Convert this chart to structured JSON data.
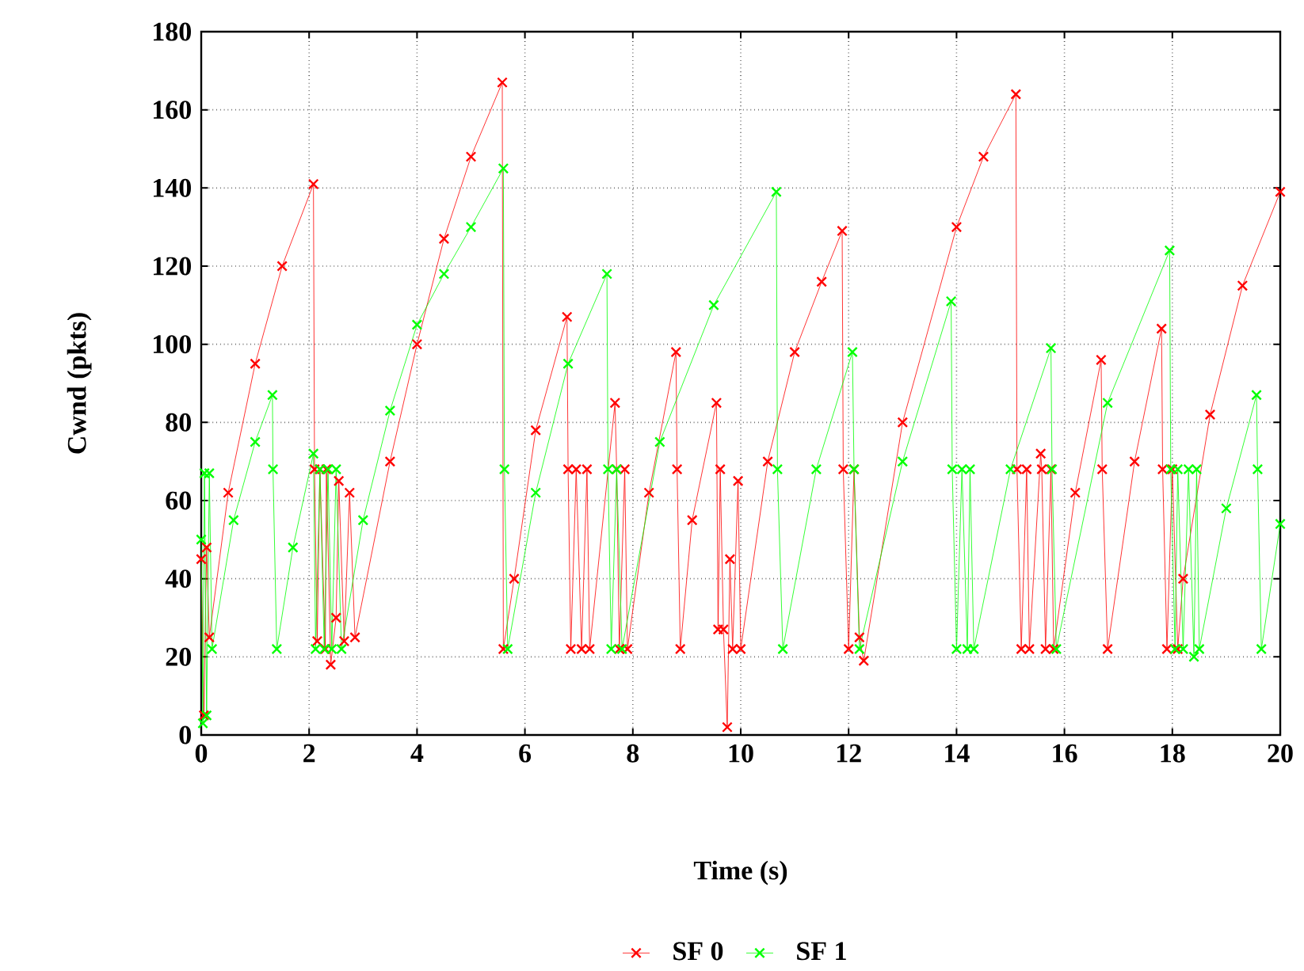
{
  "chart_data": {
    "type": "line",
    "xlabel": "Time (s)",
    "ylabel": "Cwnd (pkts)",
    "xlim": [
      0,
      20
    ],
    "xticks": [
      0,
      2,
      4,
      6,
      8,
      10,
      12,
      14,
      16,
      18,
      20
    ],
    "ylim": [
      0,
      180
    ],
    "yticks": [
      0,
      20,
      40,
      60,
      80,
      100,
      120,
      140,
      160,
      180
    ],
    "grid": true,
    "legend": "bottom",
    "marker": "cross",
    "series": [
      {
        "name": "SF 0",
        "color": "#ff0000",
        "x": [
          0,
          0.05,
          0.1,
          0.15,
          0.5,
          1.0,
          1.5,
          2.08,
          2.1,
          2.15,
          2.2,
          2.3,
          2.32,
          2.4,
          2.5,
          2.55,
          2.65,
          2.75,
          2.85,
          3.5,
          4.0,
          4.5,
          5.0,
          5.58,
          5.6,
          5.8,
          6.2,
          6.78,
          6.8,
          6.85,
          6.95,
          7.05,
          7.15,
          7.2,
          7.67,
          7.7,
          7.75,
          7.85,
          7.9,
          8.3,
          8.8,
          8.82,
          8.88,
          9.1,
          9.55,
          9.58,
          9.62,
          9.68,
          9.75,
          9.8,
          9.85,
          9.95,
          10.0,
          10.5,
          11.0,
          11.5,
          11.88,
          11.9,
          12.0,
          12.1,
          12.2,
          12.28,
          13.0,
          14.0,
          14.5,
          15.1,
          15.12,
          15.2,
          15.3,
          15.35,
          15.56,
          15.58,
          15.65,
          15.75,
          15.8,
          16.2,
          16.68,
          16.7,
          16.8,
          17.3,
          17.8,
          17.82,
          17.9,
          18.0,
          18.1,
          18.2,
          18.7,
          19.3,
          20.0
        ],
        "values": [
          45,
          5,
          48,
          25,
          62,
          95,
          120,
          141,
          68,
          24,
          68,
          22,
          68,
          18,
          30,
          65,
          24,
          62,
          25,
          70,
          100,
          127,
          148,
          167,
          22,
          40,
          78,
          107,
          68,
          22,
          68,
          22,
          68,
          22,
          85,
          68,
          22,
          68,
          22,
          62,
          98,
          68,
          22,
          55,
          85,
          27,
          68,
          27,
          2,
          45,
          22,
          65,
          22,
          70,
          98,
          116,
          129,
          68,
          22,
          68,
          25,
          19,
          80,
          130,
          148,
          164,
          68,
          22,
          68,
          22,
          72,
          68,
          22,
          68,
          22,
          62,
          96,
          68,
          22,
          70,
          104,
          68,
          22,
          68,
          22,
          40,
          82,
          115,
          139
        ]
      },
      {
        "name": "SF 1",
        "color": "#00ff00",
        "x": [
          0,
          0.03,
          0.06,
          0.1,
          0.15,
          0.2,
          0.6,
          1.0,
          1.32,
          1.33,
          1.4,
          1.7,
          2.08,
          2.12,
          2.2,
          2.28,
          2.35,
          2.42,
          2.5,
          2.6,
          3.0,
          3.5,
          4.0,
          4.5,
          5.0,
          5.6,
          5.62,
          5.68,
          6.2,
          6.8,
          7.52,
          7.54,
          7.6,
          7.7,
          7.8,
          8.5,
          9.5,
          10.66,
          10.68,
          10.78,
          11.4,
          12.07,
          12.1,
          12.2,
          13.0,
          13.9,
          13.92,
          14.0,
          14.1,
          14.2,
          14.25,
          14.32,
          15.0,
          15.75,
          15.77,
          15.85,
          16.8,
          17.95,
          17.97,
          18.05,
          18.1,
          18.2,
          18.3,
          18.4,
          18.45,
          18.5,
          19.0,
          19.56,
          19.58,
          19.65,
          20.0
        ],
        "values": [
          50,
          3,
          67,
          5,
          67,
          22,
          55,
          75,
          87,
          68,
          22,
          48,
          72,
          22,
          68,
          22,
          68,
          22,
          68,
          22,
          55,
          83,
          105,
          118,
          130,
          145,
          68,
          22,
          62,
          95,
          118,
          68,
          22,
          68,
          22,
          75,
          110,
          139,
          68,
          22,
          68,
          98,
          68,
          22,
          70,
          111,
          68,
          22,
          68,
          22,
          68,
          22,
          68,
          99,
          68,
          22,
          85,
          124,
          68,
          22,
          68,
          22,
          68,
          20,
          68,
          22,
          58,
          87,
          68,
          22,
          54
        ]
      }
    ]
  }
}
